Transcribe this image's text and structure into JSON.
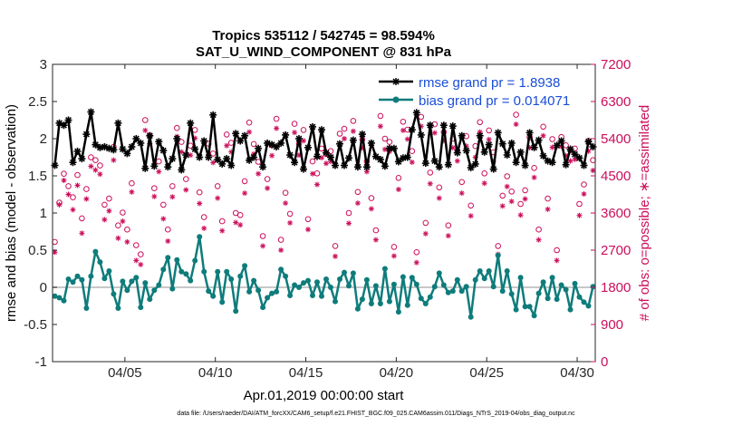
{
  "chart_data": {
    "type": "line",
    "title_line1": "Tropics 535112 / 542745 = 98.594%",
    "title_line2": "SAT_U_WIND_COMPONENT @ 831 hPa",
    "xlabel": "Apr.01,2019 00:00:00 start",
    "ylabel_left": "rmse and bias (model - observation)",
    "ylabel_right": "# of obs: o=possible; ∗=assimilated",
    "ylim_left": [
      -1,
      3
    ],
    "ylim_right": [
      0,
      7200
    ],
    "xlim": [
      1.0,
      31.0
    ],
    "left_ticks": [
      "-1",
      "-0.5",
      "0",
      "0.5",
      "1",
      "1.5",
      "2",
      "2.5",
      "3"
    ],
    "right_ticks": [
      "0",
      "900",
      "1800",
      "2700",
      "3600",
      "4500",
      "5400",
      "6300",
      "7200"
    ],
    "x_ticks": [
      {
        "day": 5,
        "label": "04/05"
      },
      {
        "day": 10,
        "label": "04/10"
      },
      {
        "day": 15,
        "label": "04/15"
      },
      {
        "day": 20,
        "label": "04/20"
      },
      {
        "day": 25,
        "label": "04/25"
      },
      {
        "day": 30,
        "label": "04/30"
      }
    ],
    "time_step_hours": 6,
    "series": [
      {
        "name": "rmse grand pr = 1.8938",
        "axis": "left",
        "color": "#000000",
        "marker": "asterisk",
        "values": [
          1.64,
          2.21,
          2.18,
          2.25,
          1.68,
          1.83,
          1.73,
          2.06,
          2.36,
          1.92,
          1.88,
          1.89,
          1.87,
          1.85,
          2.21,
          1.86,
          1.8,
          1.89,
          2.0,
          1.94,
          1.6,
          2.04,
          1.63,
          1.96,
          1.84,
          1.62,
          1.73,
          2.0,
          1.58,
          1.78,
          2.21,
          1.86,
          1.75,
          1.97,
          1.75,
          2.32,
          1.72,
          1.66,
          1.73,
          1.64,
          2.07,
          1.97,
          2.04,
          1.71,
          1.75,
          1.87,
          1.62,
          1.94,
          1.92,
          1.89,
          1.94,
          2.05,
          1.78,
          1.68,
          2.0,
          1.59,
          1.88,
          2.16,
          1.76,
          2.12,
          1.81,
          1.75,
          1.64,
          1.93,
          1.64,
          1.74,
          1.98,
          1.62,
          2.06,
          1.62,
          1.94,
          1.76,
          1.72,
          1.63,
          1.87,
          1.87,
          1.69,
          1.74,
          1.75,
          2.12,
          2.35,
          2.05,
          1.67,
          2.18,
          1.7,
          1.62,
          2.18,
          1.65,
          2.17,
          1.81,
          2.04,
          1.84,
          1.61,
          1.66,
          2.04,
          1.82,
          1.92,
          1.59,
          2.08,
          1.93,
          1.78,
          1.94,
          1.68,
          1.82,
          1.64,
          2.08,
          1.88,
          1.98,
          1.77,
          1.7,
          1.68,
          1.91,
          1.97,
          1.65,
          1.86,
          1.79,
          1.74,
          1.64,
          1.96,
          1.89
        ]
      },
      {
        "name": "bias grand pr = 0.014071",
        "axis": "left",
        "color": "#0e7c7b",
        "marker": "dot",
        "values": [
          -0.12,
          -0.14,
          -0.18,
          0.11,
          0.07,
          0.15,
          0.1,
          -0.28,
          0.15,
          0.48,
          0.34,
          0.12,
          0.22,
          -0.09,
          -0.28,
          0.08,
          -0.04,
          0.08,
          0.13,
          -0.27,
          0.06,
          -0.16,
          -0.04,
          0.03,
          0.24,
          0.4,
          -0.02,
          0.37,
          0.21,
          0.18,
          0.09,
          0.36,
          0.68,
          0.21,
          -0.05,
          -0.12,
          0.21,
          -0.2,
          0.21,
          0.11,
          -0.32,
          0.15,
          0.29,
          -0.06,
          0.09,
          -0.04,
          -0.27,
          -0.14,
          -0.08,
          -0.06,
          0.24,
          0.15,
          -0.11,
          0.03,
          0.0,
          0.06,
          0.09,
          -0.11,
          0.07,
          -0.12,
          0.11,
          0.0,
          -0.19,
          0.11,
          0.2,
          0.02,
          0.19,
          -0.29,
          -0.16,
          0.1,
          -0.22,
          0.02,
          -0.22,
          0.25,
          -0.19,
          0.04,
          -0.33,
          0.14,
          -0.24,
          0.13,
          0.04,
          -0.15,
          -0.22,
          -0.13,
          0.01,
          0.19,
          0.03,
          -0.07,
          -0.05,
          0.1,
          -0.05,
          0.01,
          -0.4,
          0.1,
          0.22,
          0.12,
          0.22,
          0.01,
          0.43,
          -0.05,
          0.22,
          -0.09,
          -0.3,
          0.13,
          -0.26,
          -0.26,
          -0.38,
          -0.08,
          0.07,
          -0.15,
          0.13,
          -0.16,
          0.03,
          -0.03,
          -0.3,
          0.05,
          -0.13,
          -0.2,
          -0.25,
          0.01
        ]
      },
      {
        "name": "possible",
        "axis": "right",
        "color": "#cc0e5b",
        "marker": "circle",
        "values": [
          2900,
          3850,
          4550,
          4250,
          3980,
          4520,
          3470,
          4180,
          4950,
          4880,
          4750,
          3800,
          3950,
          5200,
          3300,
          3610,
          3200,
          4320,
          2820,
          2600,
          5850,
          5480,
          4200,
          4850,
          3800,
          3200,
          4250,
          5660,
          5320,
          4420,
          5230,
          5610,
          4100,
          3500,
          5280,
          5040,
          4250,
          3400,
          5500,
          5300,
          3600,
          3550,
          4370,
          5790,
          5270,
          4840,
          3040,
          4420,
          5240,
          5880,
          2950,
          4090,
          3580,
          5760,
          5280,
          5610,
          3450,
          4850,
          4560,
          5160,
          5030,
          5100,
          2800,
          5520,
          5640,
          3600,
          5830,
          4110,
          5380,
          4850,
          3960,
          3180,
          5950,
          5400,
          5320,
          2780,
          4450,
          5810,
          5620,
          5100,
          2650,
          5930,
          3360,
          4580,
          5750,
          4220,
          5560,
          3300,
          5400,
          5120,
          4350,
          5460,
          3780,
          5220,
          5800,
          4560,
          5600,
          5070,
          2800,
          4020,
          4490,
          4120,
          5980,
          3820,
          4150,
          5430,
          4690,
          3200,
          5690,
          3950,
          5390,
          2700,
          5440,
          5240,
          5120,
          5160,
          3820,
          4290,
          5350,
          4880
        ]
      },
      {
        "name": "assimilated",
        "axis": "right",
        "color": "#cc0e5b",
        "marker": "asterisk",
        "values": [
          2650,
          3800,
          4390,
          4050,
          3680,
          4270,
          3110,
          3940,
          4730,
          4640,
          4540,
          3440,
          3650,
          4880,
          2990,
          3400,
          2900,
          4110,
          2450,
          2350,
          5600,
          5280,
          4000,
          4600,
          3460,
          2920,
          3990,
          5450,
          5080,
          4160,
          5000,
          5410,
          3830,
          3230,
          5010,
          4820,
          3960,
          3170,
          5230,
          5080,
          3370,
          3310,
          4080,
          5560,
          5030,
          4550,
          2800,
          4200,
          4990,
          5650,
          2700,
          3840,
          3360,
          5550,
          5000,
          5350,
          3200,
          4550,
          4290,
          4940,
          4800,
          4850,
          2550,
          5280,
          5400,
          3350,
          5580,
          3840,
          5170,
          4600,
          3700,
          2950,
          5700,
          5140,
          5090,
          2560,
          4170,
          5600,
          5390,
          4830,
          2400,
          5700,
          3100,
          4310,
          5540,
          3960,
          5350,
          3050,
          5180,
          4860,
          4080,
          5220,
          3530,
          4950,
          5560,
          4320,
          5380,
          4850,
          2600,
          3770,
          4240,
          3880,
          5750,
          3550,
          3940,
          5180,
          4460,
          2950,
          5470,
          3690,
          5190,
          2450,
          5210,
          4990,
          4860,
          4900,
          3540,
          4060,
          5100,
          4630
        ]
      }
    ]
  },
  "footer": {
    "data_file": "data file: /Users/raeder/DAI/ATM_forcXX/CAM6_setup/f.e21.FHIST_BGC.f09_025.CAM6assim.011/Diags_NTrS_2019-04/obs_diag_output.nc"
  }
}
